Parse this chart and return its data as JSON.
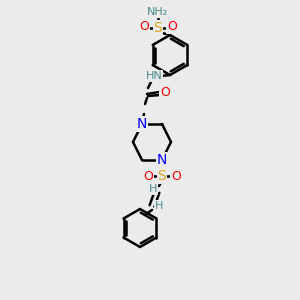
{
  "bg_color": "#ebebeb",
  "line_color": "#000000",
  "bond_width": 1.8,
  "atom_colors": {
    "N": "#0000FF",
    "O": "#FF0000",
    "S": "#DAA520",
    "H": "#4a8a8a",
    "C": "#000000"
  },
  "font_size": 8,
  "fig_width": 3.0,
  "fig_height": 3.0,
  "dpi": 100
}
